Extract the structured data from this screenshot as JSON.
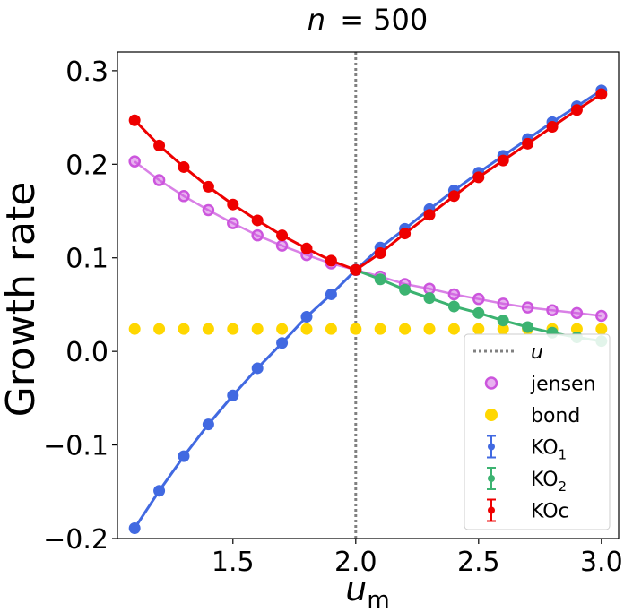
{
  "chart_data": {
    "type": "line",
    "title_main": "n",
    "title_value": "= 500",
    "xlabel_main": "u",
    "xlabel_sub": "m",
    "ylabel": "Growth rate",
    "xlim": [
      1.03,
      3.07
    ],
    "ylim": [
      -0.2,
      0.32
    ],
    "xticks": [
      1.5,
      2.0,
      2.5,
      3.0
    ],
    "xtick_labels": [
      "1.5",
      "2.0",
      "2.5",
      "3.0"
    ],
    "yticks": [
      -0.2,
      -0.1,
      0.0,
      0.1,
      0.2,
      0.3
    ],
    "ytick_labels": [
      "−0.2",
      "−0.1",
      "0.0",
      "0.1",
      "0.2",
      "0.3"
    ],
    "vline": {
      "x": 2.0,
      "label": "u",
      "color": "#808080"
    },
    "legend_position": "lower-right",
    "x": [
      1.1,
      1.2,
      1.3,
      1.4,
      1.5,
      1.6,
      1.7,
      1.8,
      1.9,
      2.0,
      2.1,
      2.2,
      2.3,
      2.4,
      2.5,
      2.6,
      2.7,
      2.8,
      2.9,
      3.0
    ],
    "series": [
      {
        "key": "jensen",
        "name": "jensen",
        "color": "#cc55dd",
        "style": "hollow-line",
        "values": [
          0.203,
          0.183,
          0.166,
          0.151,
          0.137,
          0.124,
          0.113,
          0.103,
          0.094,
          0.087,
          0.08,
          0.072,
          0.067,
          0.061,
          0.056,
          0.051,
          0.047,
          0.044,
          0.041,
          0.038
        ]
      },
      {
        "key": "bond",
        "name": "bond",
        "color": "#ffd700",
        "style": "dots",
        "values": [
          0.024,
          0.024,
          0.024,
          0.024,
          0.024,
          0.024,
          0.024,
          0.024,
          0.024,
          0.024,
          0.024,
          0.024,
          0.024,
          0.024,
          0.024,
          0.024,
          0.024,
          0.024,
          0.024,
          0.024
        ]
      },
      {
        "key": "KO1",
        "name": "KO",
        "name_sub": "1",
        "color": "#4169e1",
        "style": "errorbar",
        "values": [
          -0.189,
          -0.149,
          -0.112,
          -0.078,
          -0.047,
          -0.018,
          0.009,
          0.037,
          0.061,
          0.087,
          0.111,
          0.131,
          0.152,
          0.172,
          0.191,
          0.209,
          0.227,
          0.245,
          0.262,
          0.279
        ]
      },
      {
        "key": "KO2",
        "name": "KO",
        "name_sub": "2",
        "color": "#3cb371",
        "style": "errorbar",
        "x": [
          2.0,
          2.1,
          2.2,
          2.3,
          2.4,
          2.5,
          2.6,
          2.7,
          2.8,
          2.9,
          3.0
        ],
        "values": [
          0.087,
          0.077,
          0.066,
          0.057,
          0.048,
          0.041,
          0.033,
          0.026,
          0.02,
          0.015,
          0.011
        ]
      },
      {
        "key": "KOc",
        "name": "KOc",
        "color": "#ee0000",
        "style": "errorbar",
        "values": [
          0.247,
          0.22,
          0.197,
          0.176,
          0.157,
          0.14,
          0.124,
          0.11,
          0.097,
          0.087,
          0.105,
          0.126,
          0.146,
          0.166,
          0.186,
          0.204,
          0.222,
          0.24,
          0.258,
          0.275
        ]
      }
    ]
  }
}
